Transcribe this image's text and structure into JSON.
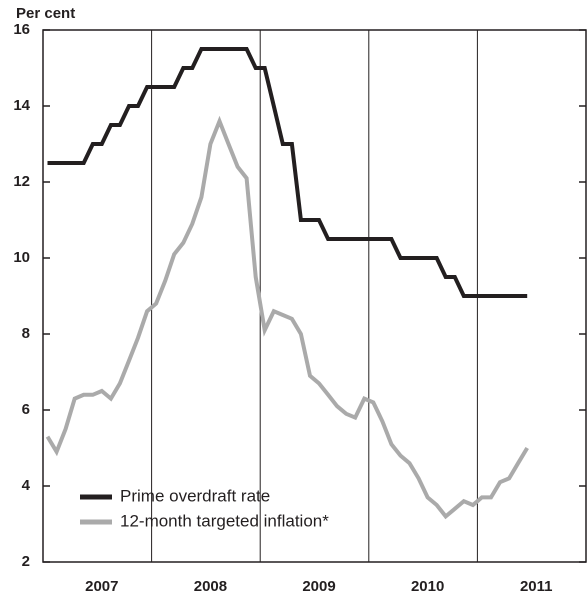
{
  "chart_data": {
    "type": "line",
    "y_label": "Per cent",
    "categories": [
      null,
      null,
      null,
      null,
      null,
      null,
      "2007",
      null,
      null,
      null,
      null,
      null,
      null,
      null,
      null,
      null,
      null,
      null,
      "2008",
      null,
      null,
      null,
      null,
      null,
      null,
      null,
      null,
      null,
      null,
      null,
      "2009",
      null,
      null,
      null,
      null,
      null,
      null,
      null,
      null,
      null,
      null,
      null,
      "2010",
      null,
      null,
      null,
      null,
      null,
      null,
      null,
      null,
      null,
      null,
      null,
      "2011",
      null,
      null,
      null,
      null,
      null
    ],
    "series": [
      {
        "name": "Prime overdraft rate",
        "color": "#231f20",
        "values": [
          12.5,
          12.5,
          12.5,
          12.5,
          12.5,
          13,
          13,
          13.5,
          13.5,
          14,
          14,
          14.5,
          14.5,
          14.5,
          14.5,
          15,
          15,
          15.5,
          15.5,
          15.5,
          15.5,
          15.5,
          15.5,
          15,
          15,
          14,
          13,
          13,
          11,
          11,
          11,
          10.5,
          10.5,
          10.5,
          10.5,
          10.5,
          10.5,
          10.5,
          10.5,
          10,
          10,
          10,
          10,
          10,
          9.5,
          9.5,
          9,
          9,
          9,
          9,
          9,
          9,
          9,
          9,
          null,
          null,
          null,
          null,
          null,
          null
        ]
      },
      {
        "name": "12-month targeted inflation*",
        "color": "#aaaaaa",
        "values": [
          5.3,
          4.9,
          5.5,
          6.3,
          6.4,
          6.4,
          6.5,
          6.3,
          6.7,
          7.3,
          7.9,
          8.6,
          8.8,
          9.4,
          10.1,
          10.4,
          10.9,
          11.6,
          13.0,
          13.6,
          13.0,
          12.4,
          12.1,
          9.5,
          8.1,
          8.6,
          8.5,
          8.4,
          8.0,
          6.9,
          6.7,
          6.4,
          6.1,
          5.9,
          5.8,
          6.3,
          6.2,
          5.7,
          5.1,
          4.8,
          4.6,
          4.2,
          3.7,
          3.5,
          3.2,
          3.4,
          3.6,
          3.5,
          3.7,
          3.7,
          4.1,
          4.2,
          4.6,
          5.0,
          null,
          null,
          null,
          null,
          null,
          null
        ]
      }
    ],
    "ylim": [
      2,
      16
    ],
    "yticks": [
      2,
      4,
      6,
      8,
      10,
      12,
      14,
      16
    ],
    "grid": true,
    "legend": "lower left"
  }
}
